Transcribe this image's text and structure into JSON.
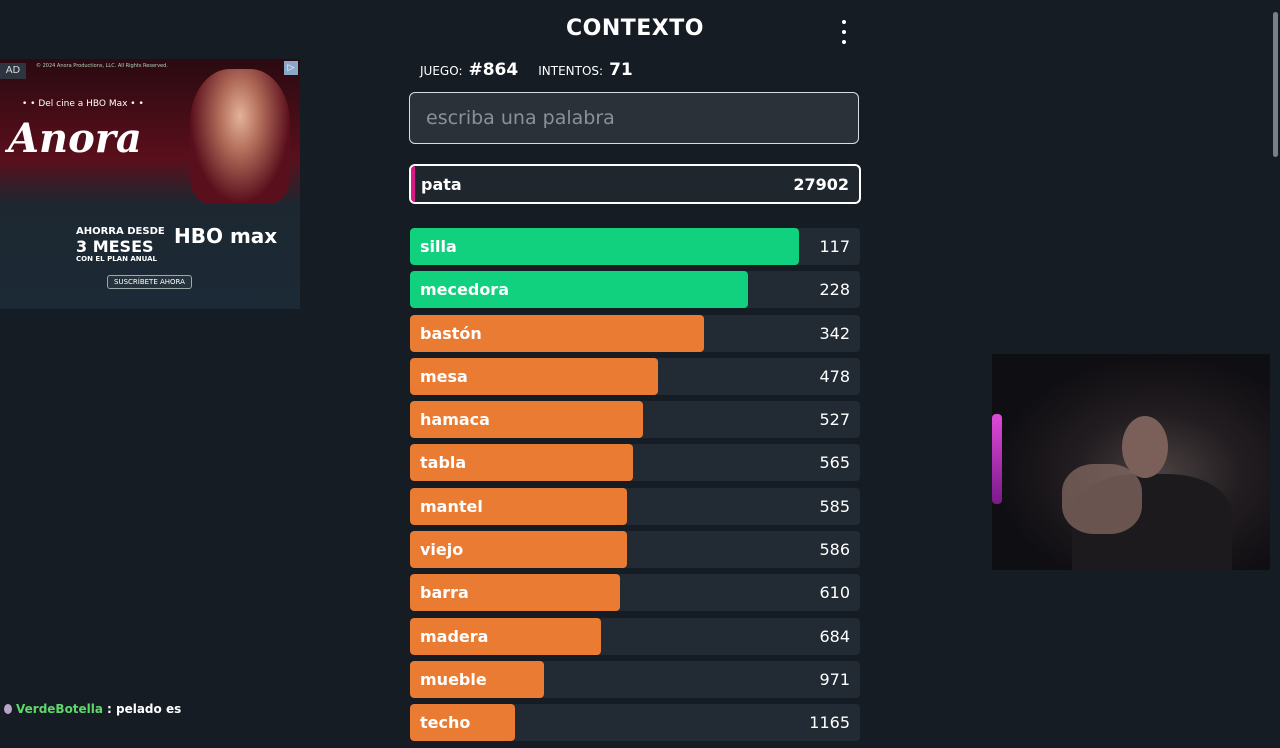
{
  "header": {
    "title": "CONTEXTO",
    "menu_icon": "three-dots-vertical-icon"
  },
  "game_info": {
    "game_label": "JUEGO:",
    "game_number": "#864",
    "attempts_label": "INTENTOS:",
    "attempts": "71"
  },
  "input": {
    "placeholder": "escriba una palabra",
    "value": ""
  },
  "current_guess": {
    "word": "pata",
    "rank": "27902",
    "accent_color": "#d81b87"
  },
  "guesses": [
    {
      "word": "silla",
      "rank": "117",
      "fill": 0.865,
      "color": "#12d17e"
    },
    {
      "word": "mecedora",
      "rank": "228",
      "fill": 0.752,
      "color": "#12d17e"
    },
    {
      "word": "bastón",
      "rank": "342",
      "fill": 0.653,
      "color": "#ea7b33"
    },
    {
      "word": "mesa",
      "rank": "478",
      "fill": 0.551,
      "color": "#ea7b33"
    },
    {
      "word": "hamaca",
      "rank": "527",
      "fill": 0.518,
      "color": "#ea7b33"
    },
    {
      "word": "tabla",
      "rank": "565",
      "fill": 0.495,
      "color": "#ea7b33"
    },
    {
      "word": "mantel",
      "rank": "585",
      "fill": 0.482,
      "color": "#ea7b33"
    },
    {
      "word": "viejo",
      "rank": "586",
      "fill": 0.482,
      "color": "#ea7b33"
    },
    {
      "word": "barra",
      "rank": "610",
      "fill": 0.467,
      "color": "#ea7b33"
    },
    {
      "word": "madera",
      "rank": "684",
      "fill": 0.425,
      "color": "#ea7b33"
    },
    {
      "word": "mueble",
      "rank": "971",
      "fill": 0.298,
      "color": "#ea7b33"
    },
    {
      "word": "techo",
      "rank": "1165",
      "fill": 0.233,
      "color": "#ea7b33"
    }
  ],
  "ad": {
    "badge": "AD",
    "copyright": "© 2024 Anora Productions, LLC. All Rights Reserved.",
    "tagline": "• • Del cine a HBO Max • •",
    "brand": "Anora",
    "promo_line1": "AHORRA DESDE",
    "promo_line2": "3 MESES",
    "promo_line3": "CON EL PLAN ANUAL",
    "service_logo": "HBO max",
    "cta": "SUSCRÍBETE AHORA",
    "choices_icon": "ad-choices-icon"
  },
  "chat": {
    "user": "VerdeBotella",
    "message": ": pelado es"
  }
}
